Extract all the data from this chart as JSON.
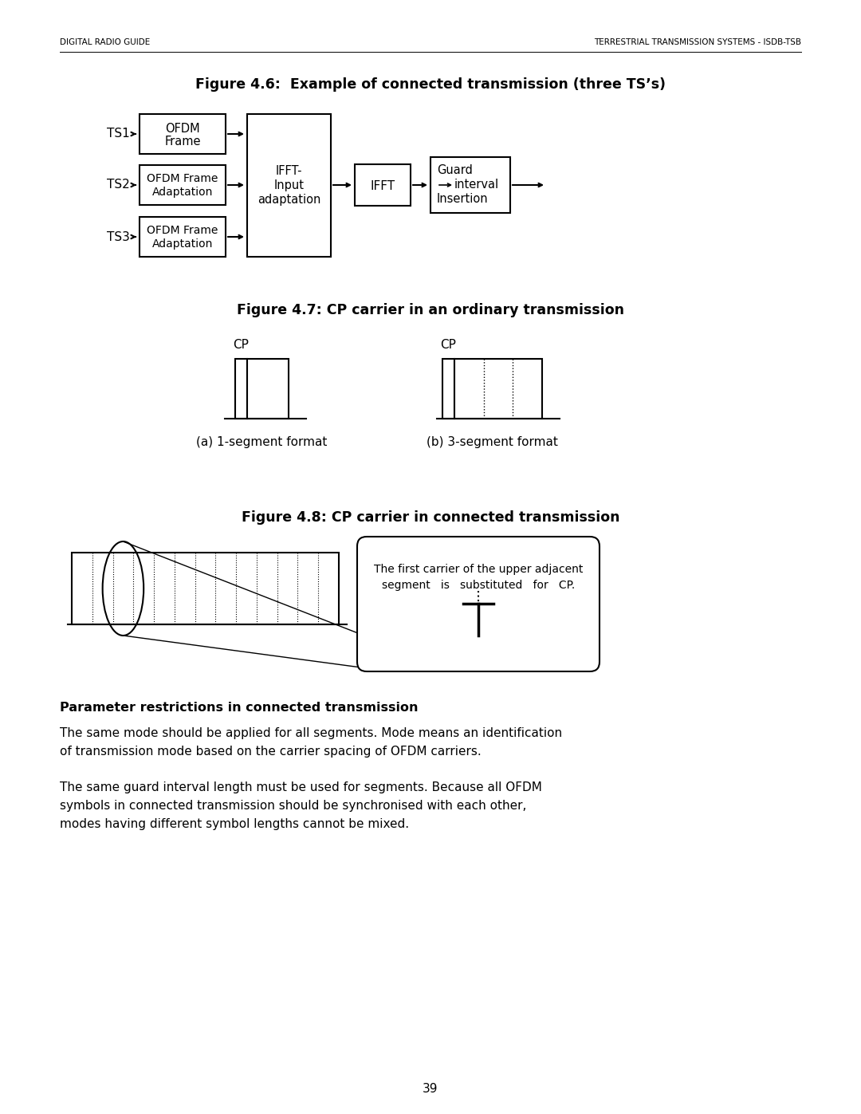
{
  "header_left": "DIGITAL RADIO GUIDE",
  "header_right": "TERRESTRIAL TRANSMISSION SYSTEMS - ISDB-TSB",
  "fig46_title": "Figure 4.6:  Example of connected transmission (three TS’s)",
  "fig47_title": "Figure 4.7: CP carrier in an ordinary transmission",
  "fig48_title": "Figure 4.8: CP carrier in connected transmission",
  "section_title": "Parameter restrictions in connected transmission",
  "para1": "The same mode should be applied for all segments. Mode means an identification\nof transmission mode based on the carrier spacing of OFDM carriers.",
  "para2": "The same guard interval length must be used for segments. Because all OFDM\nsymbols in connected transmission should be synchronised with each other,\nmodes having different symbol lengths cannot be mixed.",
  "page_number": "39",
  "bg_color": "#ffffff",
  "text_color": "#000000",
  "fig47_label_a": "(a) 1-segment format",
  "fig47_label_b": "(b) 3-segment format",
  "fig48_annotation_l1": "The first carrier of the upper adjacent",
  "fig48_annotation_l2": "segment   is   substituted   for   CP."
}
